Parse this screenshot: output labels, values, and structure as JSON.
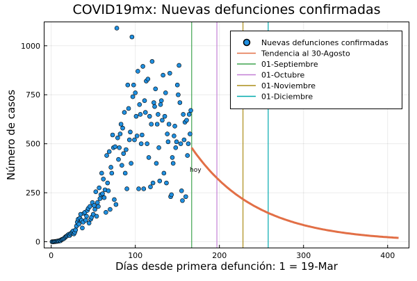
{
  "chart_data": {
    "type": "scatter",
    "title": "COVID19mx: Nuevas defunciones confirmadas",
    "xlabel": "Días desde primera defunción: 1 = 19-Mar",
    "ylabel": "Número de casos",
    "xlim": [
      -8,
      425
    ],
    "ylim": [
      -30,
      1120
    ],
    "x_ticks": [
      0,
      100,
      200,
      300,
      400
    ],
    "y_ticks": [
      0,
      250,
      500,
      750,
      1000
    ],
    "grid": true,
    "legend_position": "top-right",
    "annotation": {
      "text": "hoy",
      "x": 168,
      "y": 357
    },
    "colors": {
      "scatter": "#1f8fe0",
      "trend": "#e26f46",
      "sep": "#3ea44e",
      "oct": "#c27fd5",
      "nov": "#ac8d18",
      "dec": "#00a9ad"
    },
    "legend": [
      {
        "label": "Nuevas defunciones confirmadas",
        "kind": "marker",
        "color_key": "scatter"
      },
      {
        "label": "Tendencia al 30-Agosto",
        "kind": "line",
        "color_key": "trend"
      },
      {
        "label": "01-Septiembre",
        "kind": "line",
        "color_key": "sep"
      },
      {
        "label": "01-Octubre",
        "kind": "line",
        "color_key": "oct"
      },
      {
        "label": "01-Noviembre",
        "kind": "line",
        "color_key": "nov"
      },
      {
        "label": "01-Diciembre",
        "kind": "line",
        "color_key": "dec"
      }
    ],
    "vlines": [
      {
        "name": "01-Septiembre",
        "x": 167,
        "color_key": "sep"
      },
      {
        "name": "01-Octubre",
        "x": 197,
        "color_key": "oct"
      },
      {
        "name": "01-Noviembre",
        "x": 228,
        "color_key": "nov"
      },
      {
        "name": "01-Diciembre",
        "x": 258,
        "color_key": "dec"
      }
    ],
    "series": [
      {
        "name": "Nuevas defunciones confirmadas",
        "type": "scatter",
        "points": [
          [
            1,
            0
          ],
          [
            2,
            0
          ],
          [
            3,
            0
          ],
          [
            4,
            1
          ],
          [
            5,
            1
          ],
          [
            6,
            2
          ],
          [
            7,
            2
          ],
          [
            8,
            4
          ],
          [
            9,
            3
          ],
          [
            10,
            6
          ],
          [
            11,
            5
          ],
          [
            12,
            10
          ],
          [
            13,
            12
          ],
          [
            14,
            14
          ],
          [
            15,
            16
          ],
          [
            16,
            20
          ],
          [
            17,
            25
          ],
          [
            18,
            28
          ],
          [
            19,
            30
          ],
          [
            20,
            35
          ],
          [
            21,
            38
          ],
          [
            22,
            32
          ],
          [
            23,
            40
          ],
          [
            24,
            45
          ],
          [
            25,
            50
          ],
          [
            26,
            55
          ],
          [
            27,
            40
          ],
          [
            28,
            48
          ],
          [
            29,
            60
          ],
          [
            30,
            80
          ],
          [
            31,
            100
          ],
          [
            32,
            115
          ],
          [
            33,
            90
          ],
          [
            34,
            120
          ],
          [
            35,
            140
          ],
          [
            36,
            110
          ],
          [
            37,
            70
          ],
          [
            38,
            100
          ],
          [
            39,
            145
          ],
          [
            40,
            150
          ],
          [
            41,
            110
          ],
          [
            42,
            130
          ],
          [
            43,
            160
          ],
          [
            44,
            170
          ],
          [
            45,
            95
          ],
          [
            46,
            180
          ],
          [
            47,
            115
          ],
          [
            48,
            125
          ],
          [
            49,
            200
          ],
          [
            50,
            140
          ],
          [
            51,
            185
          ],
          [
            52,
            165
          ],
          [
            53,
            255
          ],
          [
            54,
            130
          ],
          [
            55,
            200
          ],
          [
            56,
            180
          ],
          [
            57,
            275
          ],
          [
            58,
            220
          ],
          [
            59,
            240
          ],
          [
            60,
            350
          ],
          [
            61,
            245
          ],
          [
            62,
            320
          ],
          [
            63,
            225
          ],
          [
            64,
            265
          ],
          [
            65,
            150
          ],
          [
            66,
            440
          ],
          [
            67,
            300
          ],
          [
            68,
            260
          ],
          [
            69,
            460
          ],
          [
            70,
            165
          ],
          [
            71,
            380
          ],
          [
            72,
            350
          ],
          [
            73,
            545
          ],
          [
            74,
            480
          ],
          [
            75,
            215
          ],
          [
            76,
            485
          ],
          [
            77,
            190
          ],
          [
            78,
            1090
          ],
          [
            79,
            530
          ],
          [
            80,
            420
          ],
          [
            81,
            480
          ],
          [
            82,
            550
          ],
          [
            83,
            600
          ],
          [
            84,
            390
          ],
          [
            85,
            580
          ],
          [
            86,
            450
          ],
          [
            87,
            660
          ],
          [
            88,
            350
          ],
          [
            89,
            470
          ],
          [
            90,
            270
          ],
          [
            91,
            800
          ],
          [
            92,
            680
          ],
          [
            93,
            520
          ],
          [
            94,
            560
          ],
          [
            95,
            400
          ],
          [
            96,
            1045
          ],
          [
            97,
            740
          ],
          [
            98,
            800
          ],
          [
            99,
            520
          ],
          [
            100,
            760
          ],
          [
            101,
            640
          ],
          [
            102,
            540
          ],
          [
            103,
            870
          ],
          [
            104,
            270
          ],
          [
            105,
            700
          ],
          [
            106,
            650
          ],
          [
            107,
            500
          ],
          [
            108,
            545
          ],
          [
            109,
            895
          ],
          [
            110,
            270
          ],
          [
            111,
            720
          ],
          [
            112,
            660
          ],
          [
            113,
            820
          ],
          [
            114,
            500
          ],
          [
            115,
            830
          ],
          [
            116,
            430
          ],
          [
            117,
            640
          ],
          [
            118,
            280
          ],
          [
            119,
            600
          ],
          [
            120,
            920
          ],
          [
            121,
            300
          ],
          [
            122,
            710
          ],
          [
            123,
            690
          ],
          [
            124,
            780
          ],
          [
            125,
            400
          ],
          [
            126,
            600
          ],
          [
            127,
            650
          ],
          [
            128,
            480
          ],
          [
            129,
            310
          ],
          [
            130,
            700
          ],
          [
            131,
            720
          ],
          [
            132,
            620
          ],
          [
            133,
            850
          ],
          [
            134,
            350
          ],
          [
            135,
            640
          ],
          [
            136,
            760
          ],
          [
            137,
            300
          ],
          [
            138,
            550
          ],
          [
            139,
            510
          ],
          [
            140,
            600
          ],
          [
            141,
            860
          ],
          [
            142,
            230
          ],
          [
            143,
            240
          ],
          [
            144,
            430
          ],
          [
            145,
            400
          ],
          [
            146,
            540
          ],
          [
            147,
            590
          ],
          [
            148,
            480
          ],
          [
            149,
            510
          ],
          [
            150,
            800
          ],
          [
            151,
            750
          ],
          [
            152,
            900
          ],
          [
            153,
            710
          ],
          [
            154,
            500
          ],
          [
            155,
            260
          ],
          [
            156,
            210
          ],
          [
            157,
            650
          ],
          [
            158,
            520
          ],
          [
            159,
            610
          ],
          [
            160,
            230
          ],
          [
            161,
            620
          ],
          [
            162,
            440
          ],
          [
            163,
            500
          ],
          [
            164,
            650
          ],
          [
            165,
            550
          ],
          [
            166,
            670
          ]
        ]
      },
      {
        "name": "Tendencia al 30-Agosto",
        "type": "line",
        "start_x": 167,
        "end_x": 414,
        "start_y": 480,
        "decay_rate": 0.013
      }
    ]
  }
}
